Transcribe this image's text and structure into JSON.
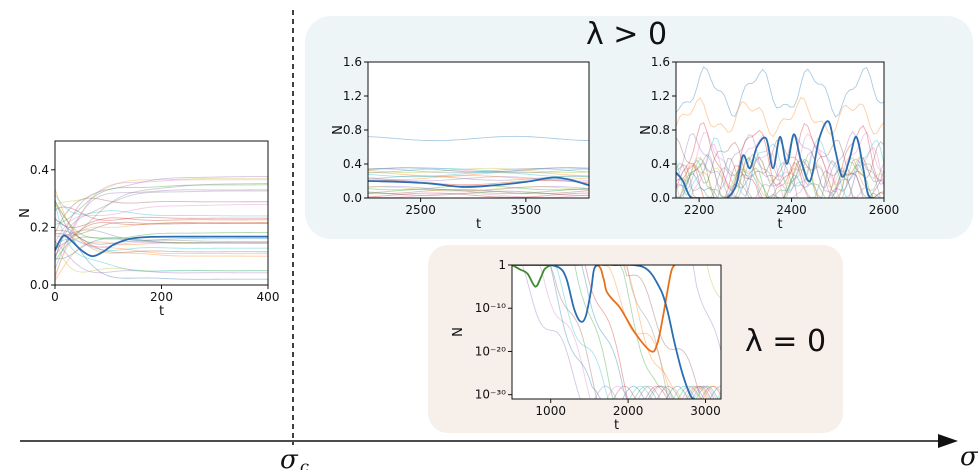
{
  "figure": {
    "sigma_c_label": "σ",
    "sigma_c_sub": "c",
    "sigma_axis_label": "σ",
    "lambda_pos_label": "λ > 0",
    "lambda_zero_label": "λ = 0",
    "colors": {
      "top_box": "#edf5f6",
      "bottom_box": "#f7efea",
      "highlight": "#2a6db0",
      "highlight2": "#e8701a",
      "highlight3": "#3f8a2f"
    }
  },
  "chart_data": [
    {
      "id": "panel-left",
      "type": "line",
      "title": "",
      "xlabel": "t",
      "ylabel": "N",
      "xlim": [
        0,
        400
      ],
      "ylim": [
        0,
        0.5
      ],
      "xticks": [
        0,
        200,
        400
      ],
      "yticks": [
        0.0,
        0.2,
        0.4
      ],
      "highlight": {
        "x": [
          0,
          15,
          30,
          50,
          70,
          90,
          110,
          140,
          180,
          250,
          320,
          400
        ],
        "y": [
          0.12,
          0.17,
          0.155,
          0.12,
          0.1,
          0.115,
          0.14,
          0.16,
          0.167,
          0.168,
          0.168,
          0.168
        ]
      },
      "background_series_count": 30
    },
    {
      "id": "panel-top-mid",
      "type": "line",
      "title": "",
      "xlabel": "t",
      "ylabel": "N",
      "xlim": [
        2000,
        4100
      ],
      "ylim": [
        0,
        1.6
      ],
      "xticks": [
        2500,
        3500
      ],
      "yticks": [
        0.0,
        0.4,
        0.8,
        1.2,
        1.6
      ],
      "highlight": {
        "x": [
          2000,
          2300,
          2600,
          2900,
          3200,
          3500,
          3750,
          3900,
          4100
        ],
        "y": [
          0.2,
          0.19,
          0.17,
          0.13,
          0.15,
          0.19,
          0.24,
          0.22,
          0.15
        ]
      },
      "background_series_count": 20
    },
    {
      "id": "panel-top-right",
      "type": "line",
      "title": "",
      "xlabel": "t",
      "ylabel": "N",
      "xlim": [
        2150,
        2600
      ],
      "ylim": [
        0,
        1.6
      ],
      "xticks": [
        2200,
        2400,
        2600
      ],
      "yticks": [
        0.0,
        0.4,
        0.8,
        1.2,
        1.6
      ],
      "highlight": {
        "x": [
          2150,
          2165,
          2180,
          2200,
          2230,
          2260,
          2280,
          2295,
          2310,
          2325,
          2345,
          2360,
          2375,
          2390,
          2405,
          2420,
          2440,
          2460,
          2480,
          2495,
          2510,
          2525,
          2540,
          2555,
          2565,
          2575
        ],
        "y": [
          0.3,
          0.2,
          0.02,
          0.0,
          0.0,
          0.0,
          0.15,
          0.5,
          0.35,
          0.6,
          0.7,
          0.35,
          0.72,
          0.4,
          0.75,
          0.45,
          0.2,
          0.7,
          0.9,
          0.55,
          0.25,
          0.45,
          0.72,
          0.35,
          0.05,
          0.0
        ]
      },
      "background_series_count": 18
    },
    {
      "id": "panel-bottom",
      "type": "line",
      "title": "",
      "xlabel": "t",
      "ylabel": "N",
      "yscale": "log",
      "xlim": [
        500,
        3200
      ],
      "ylim_log10": [
        -31,
        0
      ],
      "xticks": [
        1000,
        2000,
        3000
      ],
      "yticks_log10": [
        0,
        -10,
        -20,
        -30
      ],
      "ytick_labels": [
        "1",
        "10⁻¹⁰",
        "10⁻²⁰",
        "10⁻³⁰"
      ],
      "highlight_blue": {
        "x": [
          500,
          900,
          1100,
          1200,
          1300,
          1380,
          1450,
          1520,
          1560,
          1620,
          1700,
          1800,
          2200,
          2400,
          2500,
          2600,
          2700,
          2800,
          2850
        ],
        "y_log10": [
          0,
          0,
          -0.5,
          -3,
          -10,
          -13,
          -12,
          -6,
          -1,
          0,
          0,
          0,
          -0.5,
          -5,
          -10,
          -18,
          -25,
          -30,
          -31
        ]
      },
      "highlight_orange": {
        "x": [
          500,
          1300,
          1600,
          1680,
          1720,
          1800,
          1900,
          2100,
          2300,
          2380,
          2450,
          2550,
          2600
        ],
        "y_log10": [
          0,
          0,
          0,
          -3,
          -6,
          -8,
          -10,
          -16,
          -20,
          -18,
          -12,
          -2,
          0
        ]
      },
      "highlight_green": {
        "x": [
          500,
          600,
          700,
          800,
          870,
          920,
          1000
        ],
        "y_log10": [
          0,
          -1,
          -2,
          -5,
          -3,
          -1,
          0
        ]
      },
      "background_series_count": 16
    }
  ]
}
